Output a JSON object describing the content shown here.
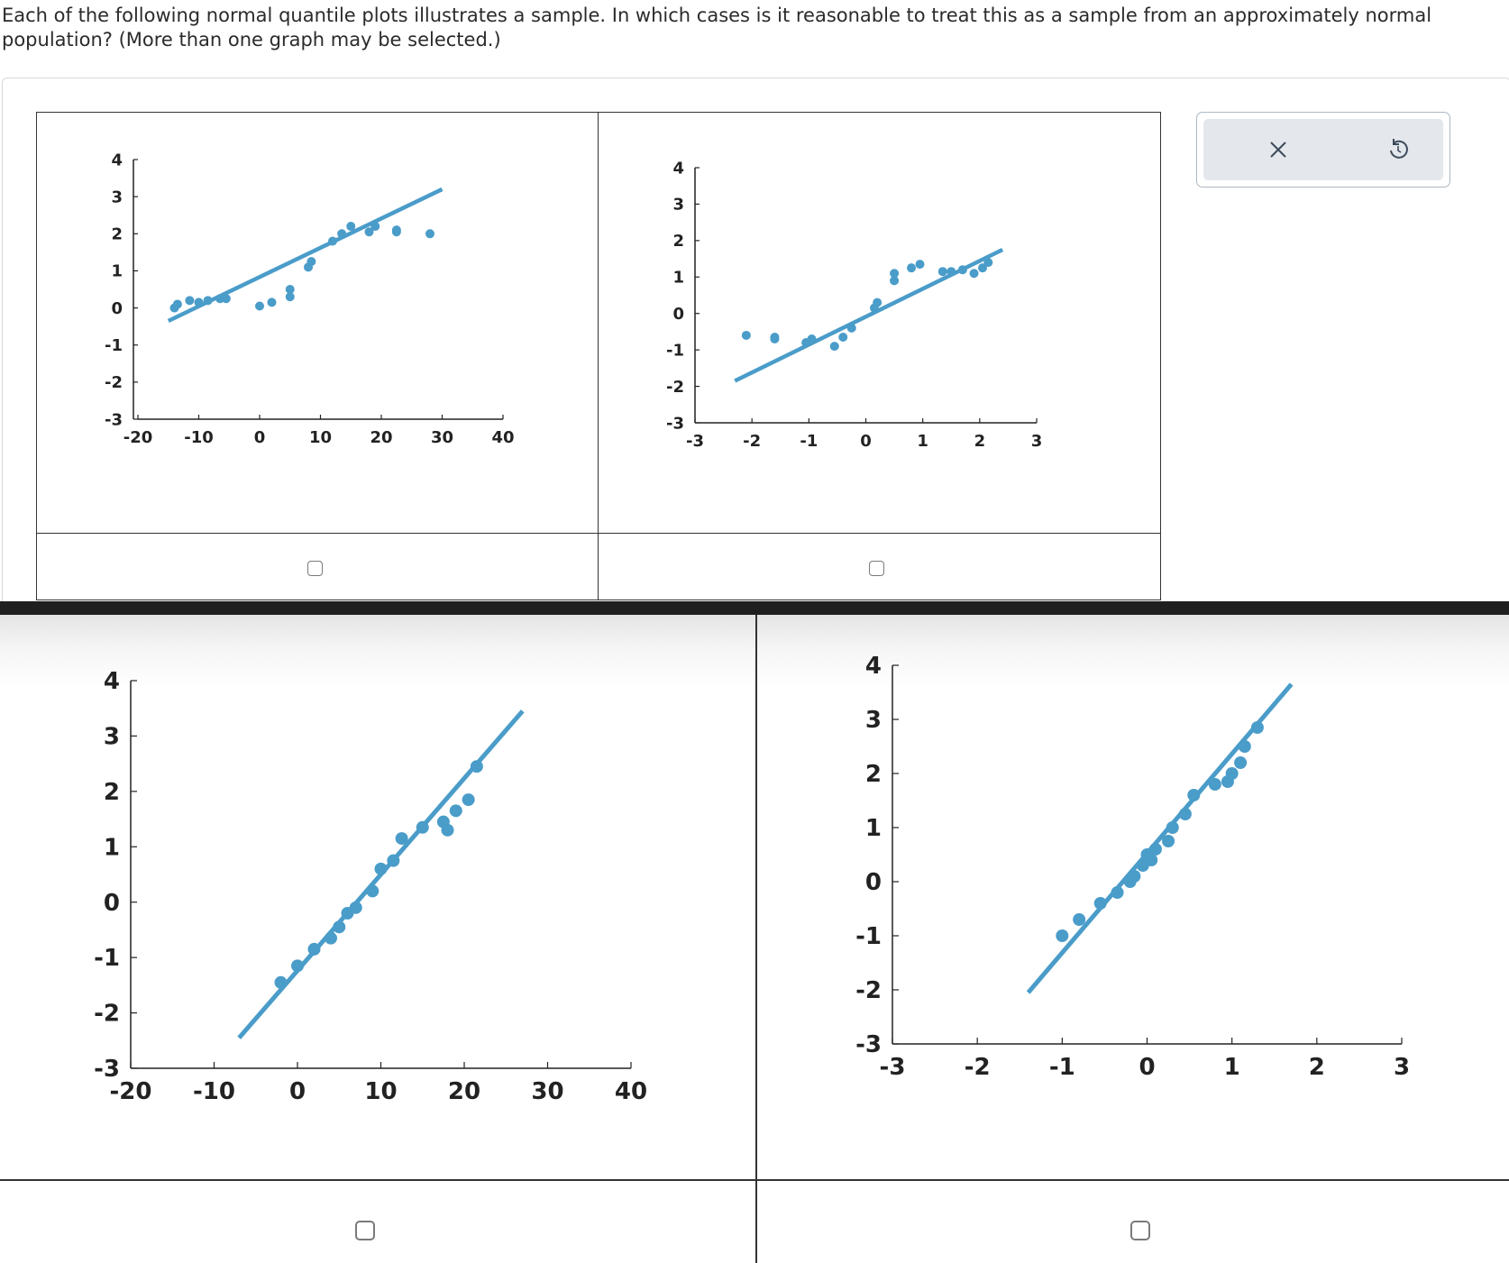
{
  "question": {
    "text": "Each of the following normal quantile plots illustrates a sample. In which cases is it reasonable to treat this as a sample from an approximately normal population? (More than one graph may be selected.)"
  },
  "toolbar": {
    "clear_icon": "close-icon",
    "reset_icon": "undo-icon"
  },
  "colors": {
    "series": "#4a9cc9",
    "axis": "#222222",
    "frame": "#333333"
  },
  "chart_data": [
    {
      "type": "scatter",
      "title": "",
      "xlabel": "",
      "ylabel": "",
      "x_ticks": [
        "-20",
        "-10",
        "0",
        "10",
        "20",
        "30",
        "40"
      ],
      "y_ticks": [
        "4",
        "3",
        "2",
        "1",
        "0",
        "-1",
        "-2",
        "-3"
      ],
      "xlim": [
        -20,
        40
      ],
      "ylim": [
        -3,
        4
      ],
      "points": [
        [
          -14,
          0
        ],
        [
          -13.5,
          0.1
        ],
        [
          -11.5,
          0.2
        ],
        [
          -10,
          0.15
        ],
        [
          -8.5,
          0.2
        ],
        [
          -6.5,
          0.25
        ],
        [
          -5.5,
          0.25
        ],
        [
          0,
          0.05
        ],
        [
          2,
          0.15
        ],
        [
          5,
          0.3
        ],
        [
          5,
          0.5
        ],
        [
          8,
          1.1
        ],
        [
          8.5,
          1.25
        ],
        [
          12,
          1.8
        ],
        [
          13.5,
          2.0
        ],
        [
          15,
          2.2
        ],
        [
          18,
          2.05
        ],
        [
          19,
          2.2
        ],
        [
          22.5,
          2.1
        ],
        [
          22.5,
          2.05
        ],
        [
          28,
          2.0
        ]
      ],
      "fit_line": [
        [
          -15,
          -0.35
        ],
        [
          30,
          3.2
        ]
      ],
      "checked": false
    },
    {
      "type": "scatter",
      "title": "",
      "xlabel": "",
      "ylabel": "",
      "x_ticks": [
        "-3",
        "-2",
        "-1",
        "0",
        "1",
        "2",
        "3"
      ],
      "y_ticks": [
        "4",
        "3",
        "2",
        "1",
        "0",
        "-1",
        "-2",
        "-3"
      ],
      "xlim": [
        -3,
        3
      ],
      "ylim": [
        -3,
        4
      ],
      "points": [
        [
          -2.1,
          -0.6
        ],
        [
          -1.6,
          -0.65
        ],
        [
          -1.6,
          -0.7
        ],
        [
          -1.05,
          -0.8
        ],
        [
          -0.95,
          -0.7
        ],
        [
          -0.55,
          -0.9
        ],
        [
          -0.4,
          -0.65
        ],
        [
          -0.25,
          -0.4
        ],
        [
          0.15,
          0.15
        ],
        [
          0.2,
          0.3
        ],
        [
          0.5,
          0.9
        ],
        [
          0.5,
          1.1
        ],
        [
          0.8,
          1.25
        ],
        [
          0.95,
          1.35
        ],
        [
          1.35,
          1.15
        ],
        [
          1.5,
          1.15
        ],
        [
          1.7,
          1.2
        ],
        [
          1.9,
          1.1
        ],
        [
          2.05,
          1.25
        ],
        [
          2.15,
          1.4
        ]
      ],
      "fit_line": [
        [
          -2.3,
          -1.85
        ],
        [
          2.4,
          1.75
        ]
      ],
      "checked": false
    },
    {
      "type": "scatter",
      "title": "",
      "xlabel": "",
      "ylabel": "",
      "x_ticks": [
        "-20",
        "-10",
        "0",
        "10",
        "20",
        "30",
        "40"
      ],
      "y_ticks": [
        "4",
        "3",
        "2",
        "1",
        "0",
        "-1",
        "-2",
        "-3"
      ],
      "xlim": [
        -20,
        40
      ],
      "ylim": [
        -3,
        4
      ],
      "points": [
        [
          -2,
          -1.45
        ],
        [
          0,
          -1.15
        ],
        [
          2,
          -0.85
        ],
        [
          4,
          -0.65
        ],
        [
          5,
          -0.45
        ],
        [
          6,
          -0.2
        ],
        [
          7,
          -0.1
        ],
        [
          9,
          0.2
        ],
        [
          10,
          0.6
        ],
        [
          11.5,
          0.75
        ],
        [
          12.5,
          1.15
        ],
        [
          15,
          1.35
        ],
        [
          17.5,
          1.45
        ],
        [
          18,
          1.3
        ],
        [
          19,
          1.65
        ],
        [
          20.5,
          1.85
        ],
        [
          21.5,
          2.45
        ]
      ],
      "fit_line": [
        [
          -7,
          -2.45
        ],
        [
          27,
          3.45
        ]
      ],
      "checked": false
    },
    {
      "type": "scatter",
      "title": "",
      "xlabel": "",
      "ylabel": "",
      "x_ticks": [
        "-3",
        "-2",
        "-1",
        "0",
        "1",
        "2",
        "3"
      ],
      "y_ticks": [
        "4",
        "3",
        "2",
        "1",
        "0",
        "-1",
        "-2",
        "-3"
      ],
      "xlim": [
        -3,
        3
      ],
      "ylim": [
        -3,
        4
      ],
      "points": [
        [
          -1,
          -1
        ],
        [
          -0.8,
          -0.7
        ],
        [
          -0.55,
          -0.4
        ],
        [
          -0.35,
          -0.2
        ],
        [
          -0.2,
          0
        ],
        [
          -0.15,
          0.1
        ],
        [
          -0.05,
          0.3
        ],
        [
          0.05,
          0.4
        ],
        [
          0,
          0.5
        ],
        [
          0.1,
          0.6
        ],
        [
          0.25,
          0.75
        ],
        [
          0.3,
          1.0
        ],
        [
          0.45,
          1.25
        ],
        [
          0.55,
          1.6
        ],
        [
          0.8,
          1.8
        ],
        [
          0.95,
          1.85
        ],
        [
          1.0,
          2.0
        ],
        [
          1.1,
          2.2
        ],
        [
          1.15,
          2.5
        ],
        [
          1.3,
          2.85
        ]
      ],
      "fit_line": [
        [
          -1.4,
          -2.05
        ],
        [
          1.7,
          3.65
        ]
      ],
      "checked": false
    }
  ]
}
